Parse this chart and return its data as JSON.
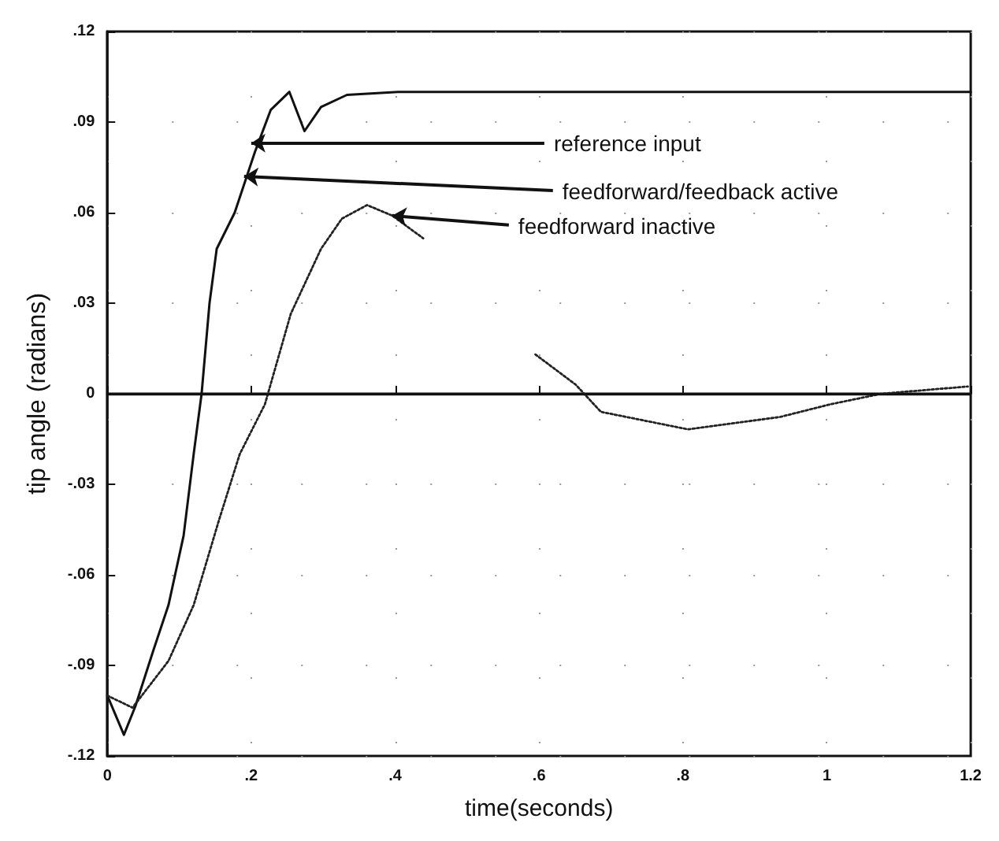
{
  "chart_data": {
    "type": "line",
    "xlabel": "time(seconds)",
    "ylabel": "tip angle (radians)",
    "xlim": [
      0,
      1.2
    ],
    "ylim": [
      -0.12,
      0.12
    ],
    "xticks": [
      0,
      {
        "value": 0.2,
        "label": ".2"
      },
      {
        "value": 0.4,
        "label": ".4"
      },
      {
        "value": 0.6,
        "label": ".6"
      },
      {
        "value": 0.8,
        "label": ".8"
      },
      1,
      1.2
    ],
    "yticks": [
      {
        "value": -0.12,
        "label": "-.12"
      },
      {
        "value": -0.09,
        "label": "-.09"
      },
      {
        "value": -0.06,
        "label": "-.06"
      },
      {
        "value": -0.03,
        "label": "-.03"
      },
      0,
      {
        "value": 0.03,
        "label": ".03"
      },
      {
        "value": 0.06,
        "label": ".06"
      },
      {
        "value": 0.09,
        "label": ".09"
      },
      {
        "value": 0.12,
        "label": ".12"
      }
    ],
    "grid": true,
    "marker": "none",
    "series": [
      {
        "color": "#111111",
        "line_style": "solid",
        "x": [
          0,
          0.023,
          0.039,
          0.064,
          0.085,
          0.106,
          0.12,
          0.131,
          0.142,
          0.152,
          0.177,
          0.205,
          0.227,
          0.253,
          0.274,
          0.297,
          0.333,
          0.404,
          0.6,
          0.8,
          1.0,
          1.2
        ],
        "values": [
          -0.1,
          -0.113,
          -0.1035,
          -0.085,
          -0.07,
          -0.047,
          -0.02,
          0,
          0.03,
          0.048,
          0.06,
          0.08,
          0.094,
          0.1,
          0.087,
          0.095,
          0.099,
          0.1,
          0.1,
          0.1,
          0.1,
          0.1
        ]
      },
      {
        "color": "#222222",
        "line_style": "dotted",
        "x": [
          0,
          0.035,
          0.085,
          0.12,
          0.155,
          0.184,
          0.219,
          0.255,
          0.297,
          0.326,
          0.361,
          0.396,
          0.439,
          0.52,
          0.595,
          0.651,
          0.686,
          0.807,
          0.935,
          1.005,
          1.076,
          1.196
        ],
        "values": [
          -0.1,
          -0.104,
          -0.0885,
          -0.07,
          -0.042,
          -0.02,
          -0.0035,
          0.0265,
          0.048,
          0.058,
          0.0625,
          0.059,
          0.0515,
          null,
          0.013,
          0.003,
          -0.006,
          -0.0118,
          -0.0077,
          -0.0035,
          0,
          0.0024
        ]
      }
    ],
    "ref_lines": [
      {
        "axis": "y",
        "value": 0,
        "color": "#111111"
      }
    ],
    "annotations": [
      {
        "text": "reference input",
        "x": 0.2,
        "y": 0.083
      },
      {
        "text": "feedforward/feedback active",
        "x": 0.19,
        "y": 0.072
      },
      {
        "text": "feedforward inactive",
        "x": 0.396,
        "y": 0.059
      }
    ]
  }
}
